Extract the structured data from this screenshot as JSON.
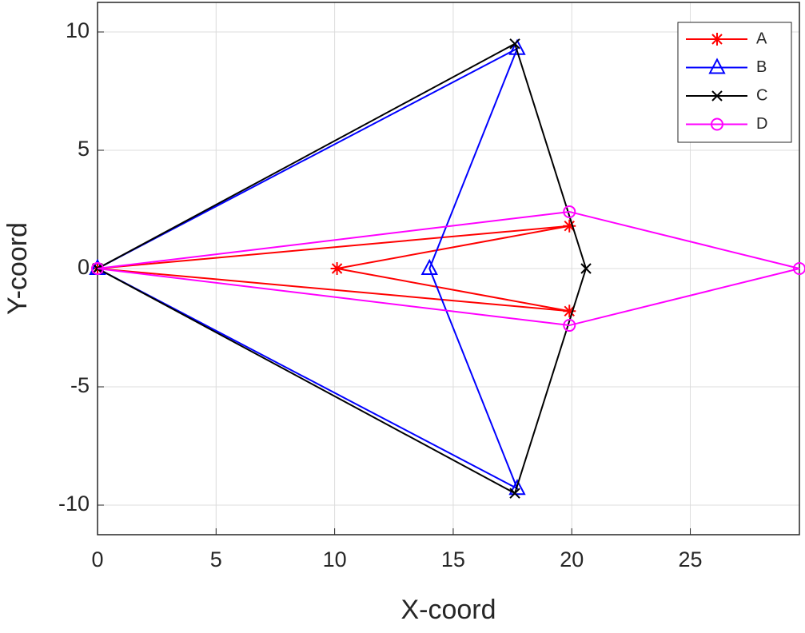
{
  "chart_data": {
    "type": "line",
    "xlabel": "X-coord",
    "ylabel": "Y-coord",
    "xlim": [
      0,
      29.6
    ],
    "ylim": [
      -11.25,
      11.25
    ],
    "xticks": [
      0,
      5,
      10,
      15,
      20,
      25
    ],
    "yticks": [
      -10,
      -5,
      0,
      5,
      10
    ],
    "grid": true,
    "legend": "top-right",
    "series": [
      {
        "name": "A",
        "color": "#ff0000",
        "marker": "asterisk",
        "x": [
          0,
          19.9,
          10.1,
          19.9,
          0
        ],
        "values": [
          0,
          1.8,
          0,
          -1.8,
          0
        ]
      },
      {
        "name": "B",
        "color": "#0000ff",
        "marker": "triangle",
        "x": [
          0,
          17.7,
          14,
          17.7,
          0
        ],
        "values": [
          0,
          9.3,
          0,
          -9.3,
          0
        ]
      },
      {
        "name": "C",
        "color": "#000000",
        "marker": "x",
        "x": [
          0,
          17.6,
          20.6,
          17.6,
          0
        ],
        "values": [
          0,
          9.5,
          0,
          -9.5,
          0
        ]
      },
      {
        "name": "D",
        "color": "#ff00ff",
        "marker": "circle",
        "x": [
          0,
          19.9,
          29.6,
          19.9,
          0
        ],
        "values": [
          0,
          2.4,
          0,
          -2.4,
          0
        ]
      }
    ]
  }
}
